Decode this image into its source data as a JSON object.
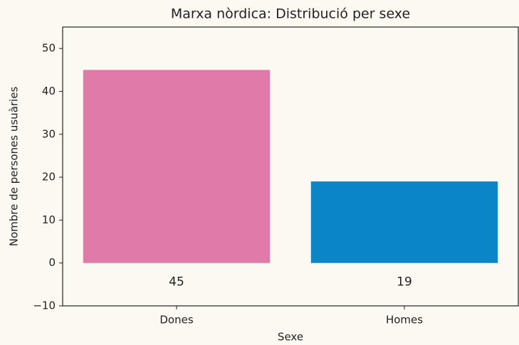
{
  "chart_data": {
    "type": "bar",
    "title": "Marxa nòrdica: Distribució per sexe",
    "x_label": "Sexe",
    "y_label": "Nombre de persones usuàries",
    "categories": [
      "Dones",
      "Homes"
    ],
    "values": [
      45,
      19
    ],
    "colors": [
      "#e07aa8",
      "#0a86c8"
    ],
    "ylim": [
      -10,
      55
    ],
    "yticks": [
      {
        "value": -10,
        "label": "−10"
      },
      0,
      10,
      20,
      30,
      40,
      50
    ],
    "grid": false
  }
}
